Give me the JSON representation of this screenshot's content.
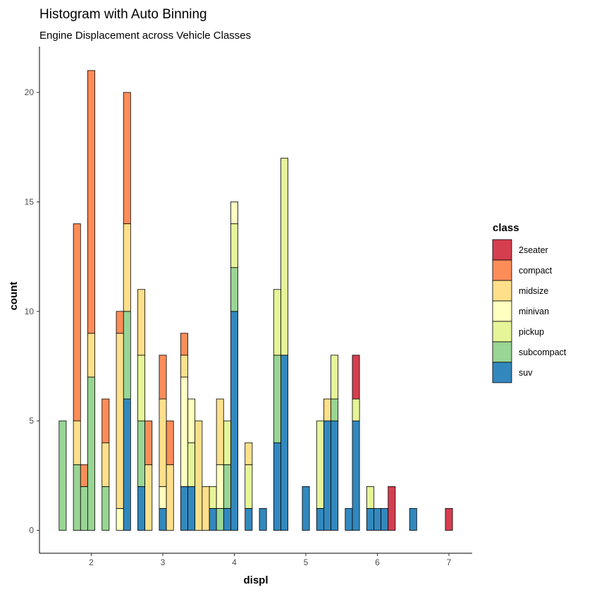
{
  "chart_data": {
    "type": "bar",
    "stacked": true,
    "title": "Histogram with Auto Binning",
    "subtitle": "Engine Displacement across Vehicle Classes",
    "xlabel": "displ",
    "ylabel": "count",
    "xlim": [
      1.4,
      7.3
    ],
    "ylim": [
      0,
      22
    ],
    "x_ticks": [
      2,
      3,
      4,
      5,
      6,
      7
    ],
    "y_ticks": [
      0,
      5,
      10,
      15,
      20
    ],
    "bin_width": 0.1,
    "grid": false,
    "legend": {
      "title": "class",
      "position": "right"
    },
    "series": [
      {
        "name": "2seater",
        "color": "#D53E4F",
        "values": [
          [
            5.7,
            2
          ],
          [
            6.2,
            2
          ],
          [
            7.0,
            1
          ]
        ]
      },
      {
        "name": "compact",
        "color": "#FC8D59",
        "values": [
          [
            1.8,
            9
          ],
          [
            1.9,
            1
          ],
          [
            2.0,
            12
          ],
          [
            2.2,
            2
          ],
          [
            2.4,
            1
          ],
          [
            2.5,
            6
          ],
          [
            2.8,
            2
          ],
          [
            3.0,
            2
          ],
          [
            3.1,
            2
          ],
          [
            3.3,
            1
          ]
        ]
      },
      {
        "name": "midsize",
        "color": "#FEE08B",
        "values": [
          [
            1.8,
            2
          ],
          [
            2.0,
            2
          ],
          [
            2.2,
            2
          ],
          [
            2.4,
            8
          ],
          [
            2.5,
            4
          ],
          [
            2.7,
            3
          ],
          [
            2.8,
            3
          ],
          [
            3.0,
            4
          ],
          [
            3.1,
            3
          ],
          [
            3.3,
            1
          ],
          [
            3.5,
            5
          ],
          [
            3.6,
            2
          ],
          [
            3.8,
            3
          ],
          [
            4.2,
            1
          ],
          [
            5.3,
            1
          ]
        ]
      },
      {
        "name": "minivan",
        "color": "#FFFFBF",
        "values": [
          [
            2.4,
            1
          ],
          [
            3.0,
            1
          ],
          [
            3.3,
            5
          ],
          [
            3.4,
            2
          ],
          [
            3.8,
            2
          ],
          [
            4.0,
            1
          ]
        ]
      },
      {
        "name": "pickup",
        "color": "#E6F598",
        "values": [
          [
            2.7,
            3
          ],
          [
            3.4,
            2
          ],
          [
            3.7,
            1
          ],
          [
            3.9,
            2
          ],
          [
            4.0,
            2
          ],
          [
            4.2,
            2
          ],
          [
            4.6,
            3
          ],
          [
            4.7,
            9
          ],
          [
            5.2,
            4
          ],
          [
            5.4,
            2
          ],
          [
            5.7,
            1
          ],
          [
            5.9,
            1
          ]
        ]
      },
      {
        "name": "subcompact",
        "color": "#99D594",
        "values": [
          [
            1.6,
            5
          ],
          [
            1.8,
            3
          ],
          [
            1.9,
            2
          ],
          [
            2.0,
            7
          ],
          [
            2.2,
            2
          ],
          [
            2.5,
            4
          ],
          [
            2.7,
            3
          ],
          [
            3.8,
            1
          ],
          [
            3.9,
            2
          ],
          [
            4.0,
            2
          ],
          [
            4.6,
            4
          ],
          [
            5.4,
            1
          ]
        ]
      },
      {
        "name": "suv",
        "color": "#3288BD",
        "values": [
          [
            2.5,
            6
          ],
          [
            2.7,
            2
          ],
          [
            3.0,
            1
          ],
          [
            3.3,
            2
          ],
          [
            3.4,
            2
          ],
          [
            3.7,
            1
          ],
          [
            3.9,
            1
          ],
          [
            4.0,
            10
          ],
          [
            4.2,
            1
          ],
          [
            4.4,
            1
          ],
          [
            4.6,
            4
          ],
          [
            4.7,
            8
          ],
          [
            5.0,
            2
          ],
          [
            5.2,
            1
          ],
          [
            5.3,
            5
          ],
          [
            5.4,
            5
          ],
          [
            5.6,
            1
          ],
          [
            5.7,
            5
          ],
          [
            5.9,
            1
          ],
          [
            6.0,
            1
          ],
          [
            6.1,
            1
          ],
          [
            6.5,
            1
          ]
        ]
      }
    ]
  }
}
